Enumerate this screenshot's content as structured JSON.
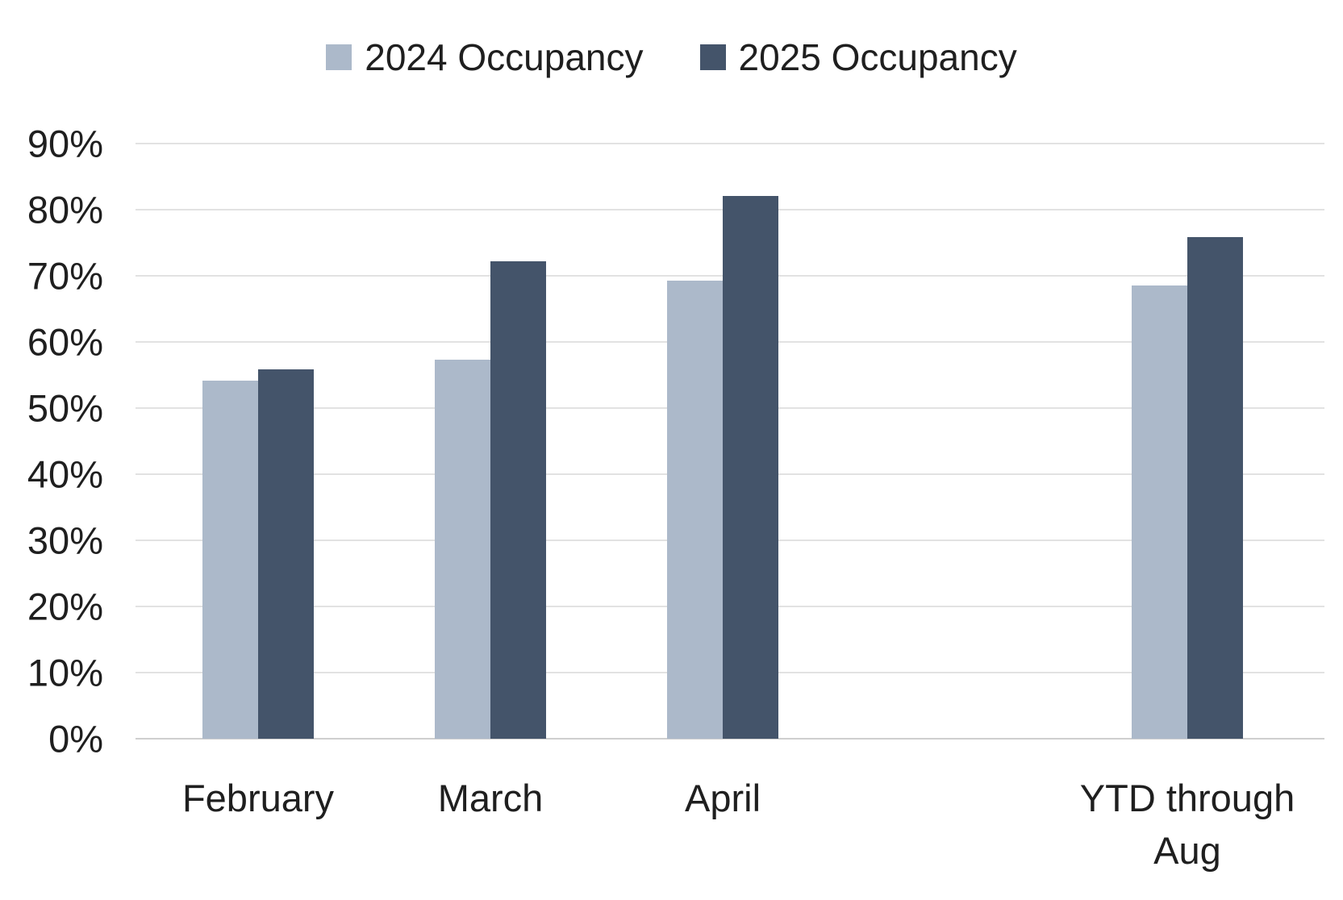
{
  "chart_data": {
    "type": "bar",
    "title": "",
    "xlabel": "",
    "ylabel": "",
    "categories": [
      "February",
      "March",
      "April",
      "YTD through Aug"
    ],
    "series": [
      {
        "name": "2024 Occupancy",
        "color": "#ACB9CA",
        "values": [
          54.1,
          57.3,
          69.3,
          68.5
        ]
      },
      {
        "name": "2025 Occupancy",
        "color": "#44546A",
        "values": [
          55.9,
          72.2,
          82.1,
          75.9
        ]
      }
    ],
    "ylim": [
      0,
      90
    ],
    "ytick_step": 10,
    "ytick_suffix": "%",
    "grid": true,
    "gridline_color": "#e2e2e2",
    "axis_line_color": "#cfcfcf",
    "text_color": "#1f1f1f",
    "legend_position": "top-center",
    "category_slots": [
      0,
      1,
      2,
      4
    ],
    "total_slots": 5
  }
}
